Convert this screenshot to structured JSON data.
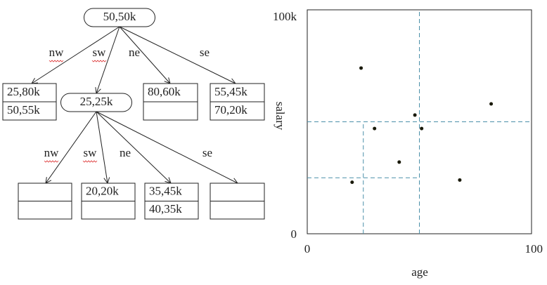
{
  "tree": {
    "root": "50,50k",
    "root_edges": [
      "nw",
      "sw",
      "ne",
      "se"
    ],
    "nw": [
      "25,80k",
      "50,55k"
    ],
    "sw": "25,25k",
    "ne": [
      "80,60k"
    ],
    "se": [
      "55,45k",
      "70,20k"
    ],
    "sw_edges": [
      "nw",
      "sw",
      "ne",
      "se"
    ],
    "sw_nw": [],
    "sw_sw": [
      "20,20k"
    ],
    "sw_ne": [
      "35,45k",
      "40,35k"
    ],
    "sw_se": []
  },
  "chart_data": {
    "type": "scatter",
    "xlabel": "age",
    "ylabel": "salary",
    "x": [
      24,
      30,
      48,
      51,
      41,
      20,
      68,
      82
    ],
    "y": [
      74,
      47,
      53,
      47,
      32,
      23,
      24,
      58
    ],
    "xlim": [
      0,
      100
    ],
    "ylim": [
      0,
      100
    ],
    "xticks": [
      0,
      100
    ],
    "yticks": [
      0,
      {
        "value": 100,
        "label": "100k"
      }
    ],
    "point_color": "#1a1a0a",
    "split_color": "#4a8fa8",
    "splits": [
      {
        "x": [
          50,
          50
        ],
        "y": [
          0,
          100
        ]
      },
      {
        "x": [
          0,
          100
        ],
        "y": [
          50,
          50
        ]
      },
      {
        "x": [
          25,
          25
        ],
        "y": [
          0,
          50
        ]
      },
      {
        "x": [
          0,
          50
        ],
        "y": [
          25,
          25
        ]
      }
    ]
  }
}
